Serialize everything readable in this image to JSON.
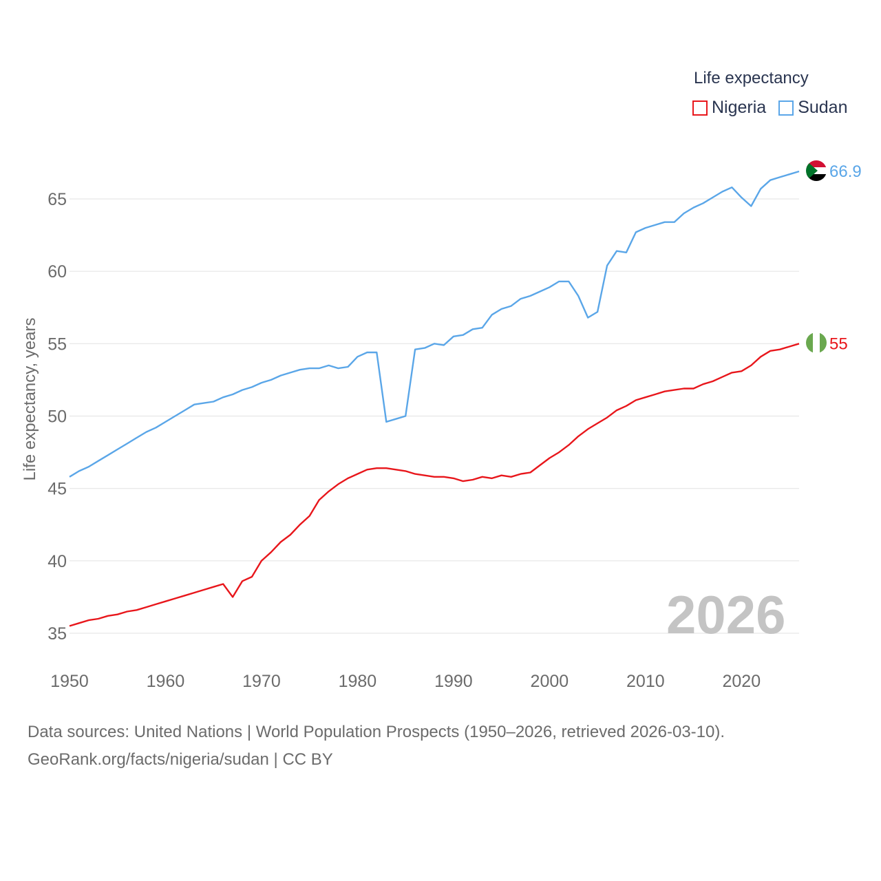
{
  "legend": {
    "title": "Life expectancy",
    "items": [
      {
        "name": "Nigeria",
        "color": "#e8161b"
      },
      {
        "name": "Sudan",
        "color": "#5aa6e8"
      }
    ]
  },
  "current_year_label": "2026",
  "source": {
    "line1": "Data sources: United Nations | World Population Prospects (1950–2026, retrieved 2026-03-10).",
    "line2": "GeoRank.org/facts/nigeria/sudan | CC BY"
  },
  "chart_data": {
    "type": "line",
    "title": "",
    "xlabel": "",
    "ylabel": "Life expectancy, years",
    "xlim": [
      1950,
      2026
    ],
    "ylim": [
      33,
      68
    ],
    "x_ticks": [
      1950,
      1960,
      1970,
      1980,
      1990,
      2000,
      2010,
      2020
    ],
    "y_ticks": [
      35,
      40,
      45,
      50,
      55,
      60,
      65
    ],
    "x": [
      1950,
      1951,
      1952,
      1953,
      1954,
      1955,
      1956,
      1957,
      1958,
      1959,
      1960,
      1961,
      1962,
      1963,
      1964,
      1965,
      1966,
      1967,
      1968,
      1969,
      1970,
      1971,
      1972,
      1973,
      1974,
      1975,
      1976,
      1977,
      1978,
      1979,
      1980,
      1981,
      1982,
      1983,
      1984,
      1985,
      1986,
      1987,
      1988,
      1989,
      1990,
      1991,
      1992,
      1993,
      1994,
      1995,
      1996,
      1997,
      1998,
      1999,
      2000,
      2001,
      2002,
      2003,
      2004,
      2005,
      2006,
      2007,
      2008,
      2009,
      2010,
      2011,
      2012,
      2013,
      2014,
      2015,
      2016,
      2017,
      2018,
      2019,
      2020,
      2021,
      2022,
      2023,
      2024,
      2025,
      2026
    ],
    "series": [
      {
        "name": "Nigeria",
        "color": "#e8161b",
        "end_label": "55",
        "flag": "nigeria-flag",
        "values": [
          35.5,
          35.7,
          35.9,
          36.0,
          36.2,
          36.3,
          36.5,
          36.6,
          36.8,
          37.0,
          37.2,
          37.4,
          37.6,
          37.8,
          38.0,
          38.2,
          38.4,
          37.5,
          38.6,
          38.9,
          40.0,
          40.6,
          41.3,
          41.8,
          42.5,
          43.1,
          44.2,
          44.8,
          45.3,
          45.7,
          46.0,
          46.3,
          46.4,
          46.4,
          46.3,
          46.2,
          46.0,
          45.9,
          45.8,
          45.8,
          45.7,
          45.5,
          45.6,
          45.8,
          45.7,
          45.9,
          45.8,
          46.0,
          46.1,
          46.6,
          47.1,
          47.5,
          48.0,
          48.6,
          49.1,
          49.5,
          49.9,
          50.4,
          50.7,
          51.1,
          51.3,
          51.5,
          51.7,
          51.8,
          51.9,
          51.9,
          52.2,
          52.4,
          52.7,
          53.0,
          53.1,
          53.5,
          54.1,
          54.5,
          54.6,
          54.8,
          55.0
        ]
      },
      {
        "name": "Sudan",
        "color": "#5aa6e8",
        "end_label": "66.9",
        "flag": "sudan-flag",
        "values": [
          45.8,
          46.2,
          46.5,
          46.9,
          47.3,
          47.7,
          48.1,
          48.5,
          48.9,
          49.2,
          49.6,
          50.0,
          50.4,
          50.8,
          50.9,
          51.0,
          51.3,
          51.5,
          51.8,
          52.0,
          52.3,
          52.5,
          52.8,
          53.0,
          53.2,
          53.3,
          53.3,
          53.5,
          53.3,
          53.4,
          54.1,
          54.4,
          54.4,
          49.6,
          49.8,
          50.0,
          54.6,
          54.7,
          55.0,
          54.9,
          55.5,
          55.6,
          56.0,
          56.1,
          57.0,
          57.4,
          57.6,
          58.1,
          58.3,
          58.6,
          58.9,
          59.3,
          59.3,
          58.3,
          56.8,
          57.2,
          60.4,
          61.4,
          61.3,
          62.7,
          63.0,
          63.2,
          63.4,
          63.4,
          64.0,
          64.4,
          64.7,
          65.1,
          65.5,
          65.8,
          65.1,
          64.5,
          65.7,
          66.3,
          66.5,
          66.7,
          66.9
        ]
      }
    ]
  }
}
